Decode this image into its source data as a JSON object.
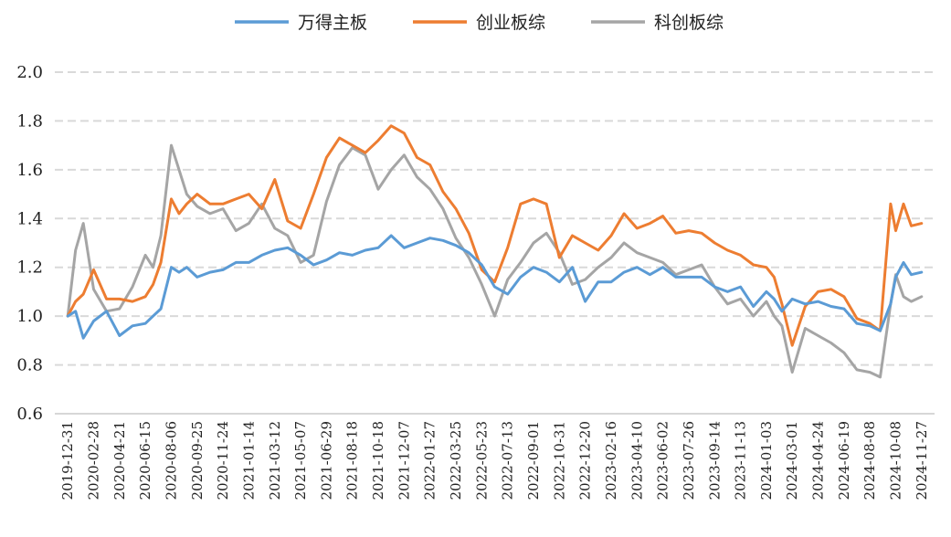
{
  "chart_data": {
    "type": "line",
    "title": "",
    "xlabel": "",
    "ylabel": "",
    "ylim": [
      0.6,
      2.0
    ],
    "yticks": [
      "0.6",
      "0.8",
      "1.0",
      "1.2",
      "1.4",
      "1.6",
      "1.8",
      "2.0"
    ],
    "grid": "horizontal dashed",
    "legend_position": "top",
    "x_tick_labels": [
      "2019-12-31",
      "2020-02-28",
      "2020-04-21",
      "2020-06-15",
      "2020-08-06",
      "2020-09-25",
      "2020-11-24",
      "2021-01-14",
      "2021-03-12",
      "2021-05-07",
      "2021-06-29",
      "2021-08-18",
      "2021-10-18",
      "2021-12-07",
      "2022-01-27",
      "2022-03-25",
      "2022-05-23",
      "2022-07-13",
      "2022-09-01",
      "2022-10-31",
      "2022-12-20",
      "2023-02-16",
      "2023-04-10",
      "2023-06-02",
      "2023-07-26",
      "2023-09-14",
      "2023-11-13",
      "2024-01-03",
      "2024-03-01",
      "2024-04-24",
      "2024-06-19",
      "2024-08-08",
      "2024-10-08",
      "2024-11-27"
    ],
    "x": [
      0,
      0.3,
      0.6,
      1,
      1.5,
      2,
      2.5,
      3,
      3.3,
      3.6,
      4,
      4.3,
      4.6,
      5,
      5.5,
      6,
      6.5,
      7,
      7.5,
      8,
      8.5,
      9,
      9.5,
      10,
      10.5,
      11,
      11.5,
      12,
      12.5,
      13,
      13.5,
      14,
      14.5,
      15,
      15.5,
      16,
      16.5,
      17,
      17.5,
      18,
      18.5,
      19,
      19.5,
      20,
      20.5,
      21,
      21.5,
      22,
      22.5,
      23,
      23.5,
      24,
      24.5,
      25,
      25.5,
      26,
      26.5,
      27,
      27.3,
      27.6,
      28,
      28.5,
      29,
      29.5,
      30,
      30.5,
      31,
      31.4,
      31.8,
      32,
      32.3,
      32.6,
      33
    ],
    "series": [
      {
        "name": "万得主板",
        "color": "#5B9BD5",
        "values": [
          1.0,
          1.02,
          0.91,
          0.98,
          1.02,
          0.92,
          0.96,
          0.97,
          1.0,
          1.03,
          1.2,
          1.18,
          1.2,
          1.16,
          1.18,
          1.19,
          1.22,
          1.22,
          1.25,
          1.27,
          1.28,
          1.25,
          1.21,
          1.23,
          1.26,
          1.25,
          1.27,
          1.28,
          1.33,
          1.28,
          1.3,
          1.32,
          1.31,
          1.29,
          1.26,
          1.21,
          1.12,
          1.09,
          1.16,
          1.2,
          1.18,
          1.14,
          1.2,
          1.06,
          1.14,
          1.14,
          1.18,
          1.2,
          1.17,
          1.2,
          1.16,
          1.16,
          1.16,
          1.12,
          1.1,
          1.12,
          1.04,
          1.1,
          1.07,
          1.02,
          1.07,
          1.05,
          1.06,
          1.04,
          1.03,
          0.97,
          0.96,
          0.94,
          1.05,
          1.16,
          1.22,
          1.17,
          1.18
        ]
      },
      {
        "name": "创业板综",
        "color": "#ED7D31",
        "values": [
          1.0,
          1.06,
          1.09,
          1.19,
          1.07,
          1.07,
          1.06,
          1.08,
          1.13,
          1.22,
          1.48,
          1.42,
          1.46,
          1.5,
          1.46,
          1.46,
          1.48,
          1.5,
          1.44,
          1.56,
          1.39,
          1.36,
          1.5,
          1.65,
          1.73,
          1.7,
          1.67,
          1.72,
          1.78,
          1.75,
          1.65,
          1.62,
          1.51,
          1.44,
          1.34,
          1.19,
          1.14,
          1.28,
          1.46,
          1.48,
          1.46,
          1.24,
          1.33,
          1.3,
          1.27,
          1.33,
          1.42,
          1.36,
          1.38,
          1.41,
          1.34,
          1.35,
          1.34,
          1.3,
          1.27,
          1.25,
          1.21,
          1.2,
          1.16,
          1.05,
          0.88,
          1.04,
          1.1,
          1.11,
          1.08,
          0.99,
          0.97,
          0.94,
          1.46,
          1.35,
          1.46,
          1.37,
          1.38
        ]
      },
      {
        "name": "科创板综",
        "color": "#A5A5A5",
        "values": [
          1.0,
          1.27,
          1.38,
          1.11,
          1.02,
          1.03,
          1.12,
          1.25,
          1.2,
          1.33,
          1.7,
          1.6,
          1.5,
          1.45,
          1.42,
          1.44,
          1.35,
          1.38,
          1.46,
          1.36,
          1.33,
          1.22,
          1.25,
          1.47,
          1.62,
          1.69,
          1.66,
          1.52,
          1.6,
          1.66,
          1.57,
          1.52,
          1.44,
          1.32,
          1.24,
          1.13,
          1.0,
          1.15,
          1.22,
          1.3,
          1.34,
          1.26,
          1.13,
          1.15,
          1.2,
          1.24,
          1.3,
          1.26,
          1.24,
          1.22,
          1.17,
          1.19,
          1.21,
          1.12,
          1.05,
          1.07,
          1.0,
          1.06,
          1.0,
          0.96,
          0.77,
          0.95,
          0.92,
          0.89,
          0.85,
          0.78,
          0.77,
          0.75,
          1.05,
          1.17,
          1.08,
          1.06,
          1.08
        ]
      }
    ]
  }
}
